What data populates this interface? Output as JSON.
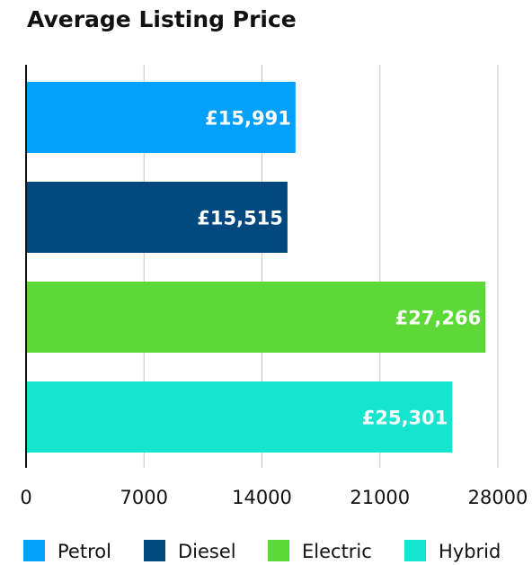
{
  "chart_data": {
    "type": "bar",
    "orientation": "horizontal",
    "title": "Average Listing Price",
    "categories": [
      "Petrol",
      "Diesel",
      "Electric",
      "Hybrid"
    ],
    "values": [
      15991,
      15515,
      27266,
      25301
    ],
    "data_labels": [
      "£15,991",
      "£15,515",
      "£27,266",
      "£25,301"
    ],
    "colors": [
      "#03A1FC",
      "#01497E",
      "#5CD937",
      "#14E5CF"
    ],
    "xlim": [
      0,
      28000
    ],
    "xticks": [
      "0",
      "7000",
      "14000",
      "21000",
      "28000"
    ],
    "grid": true,
    "legend": {
      "placement": "bottom",
      "entries": [
        "Petrol",
        "Diesel",
        "Electric",
        "Hybrid"
      ]
    }
  }
}
